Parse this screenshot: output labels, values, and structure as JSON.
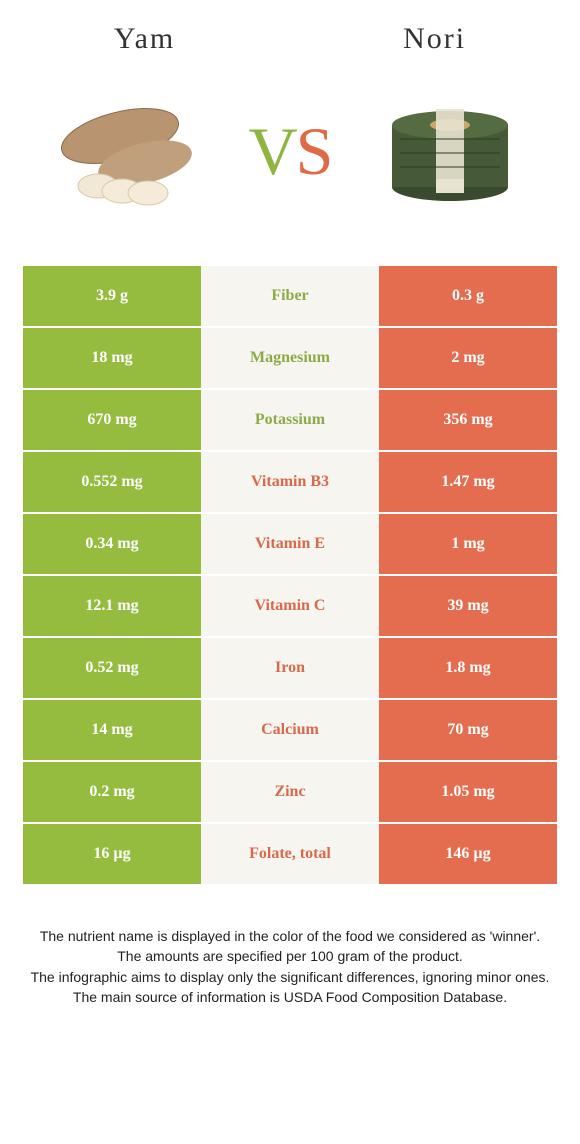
{
  "foods": {
    "left": {
      "name": "Yam"
    },
    "right": {
      "name": "Nori"
    }
  },
  "vs": {
    "v": "V",
    "s": "S"
  },
  "colors": {
    "left_bg": "#95bb3f",
    "right_bg": "#e46d4f",
    "mid_bg": "#f6f5f0",
    "left_text": "#8cab46",
    "right_text": "#d86a4c"
  },
  "rows": [
    {
      "nutrient": "Fiber",
      "left": "3.9 g",
      "right": "0.3 g",
      "winner": "left"
    },
    {
      "nutrient": "Magnesium",
      "left": "18 mg",
      "right": "2 mg",
      "winner": "left"
    },
    {
      "nutrient": "Potassium",
      "left": "670 mg",
      "right": "356 mg",
      "winner": "left"
    },
    {
      "nutrient": "Vitamin B3",
      "left": "0.552 mg",
      "right": "1.47 mg",
      "winner": "right"
    },
    {
      "nutrient": "Vitamin E",
      "left": "0.34 mg",
      "right": "1 mg",
      "winner": "right"
    },
    {
      "nutrient": "Vitamin C",
      "left": "12.1 mg",
      "right": "39 mg",
      "winner": "right"
    },
    {
      "nutrient": "Iron",
      "left": "0.52 mg",
      "right": "1.8 mg",
      "winner": "right"
    },
    {
      "nutrient": "Calcium",
      "left": "14 mg",
      "right": "70 mg",
      "winner": "right"
    },
    {
      "nutrient": "Zinc",
      "left": "0.2 mg",
      "right": "1.05 mg",
      "winner": "right"
    },
    {
      "nutrient": "Folate, total",
      "left": "16 µg",
      "right": "146 µg",
      "winner": "right"
    }
  ],
  "footnotes": [
    "The nutrient name is displayed in the color of the food we considered as 'winner'.",
    "The amounts are specified per 100 gram of the product.",
    "The infographic aims to display only the significant differences, ignoring minor ones.",
    "The main source of information is USDA Food Composition Database."
  ]
}
